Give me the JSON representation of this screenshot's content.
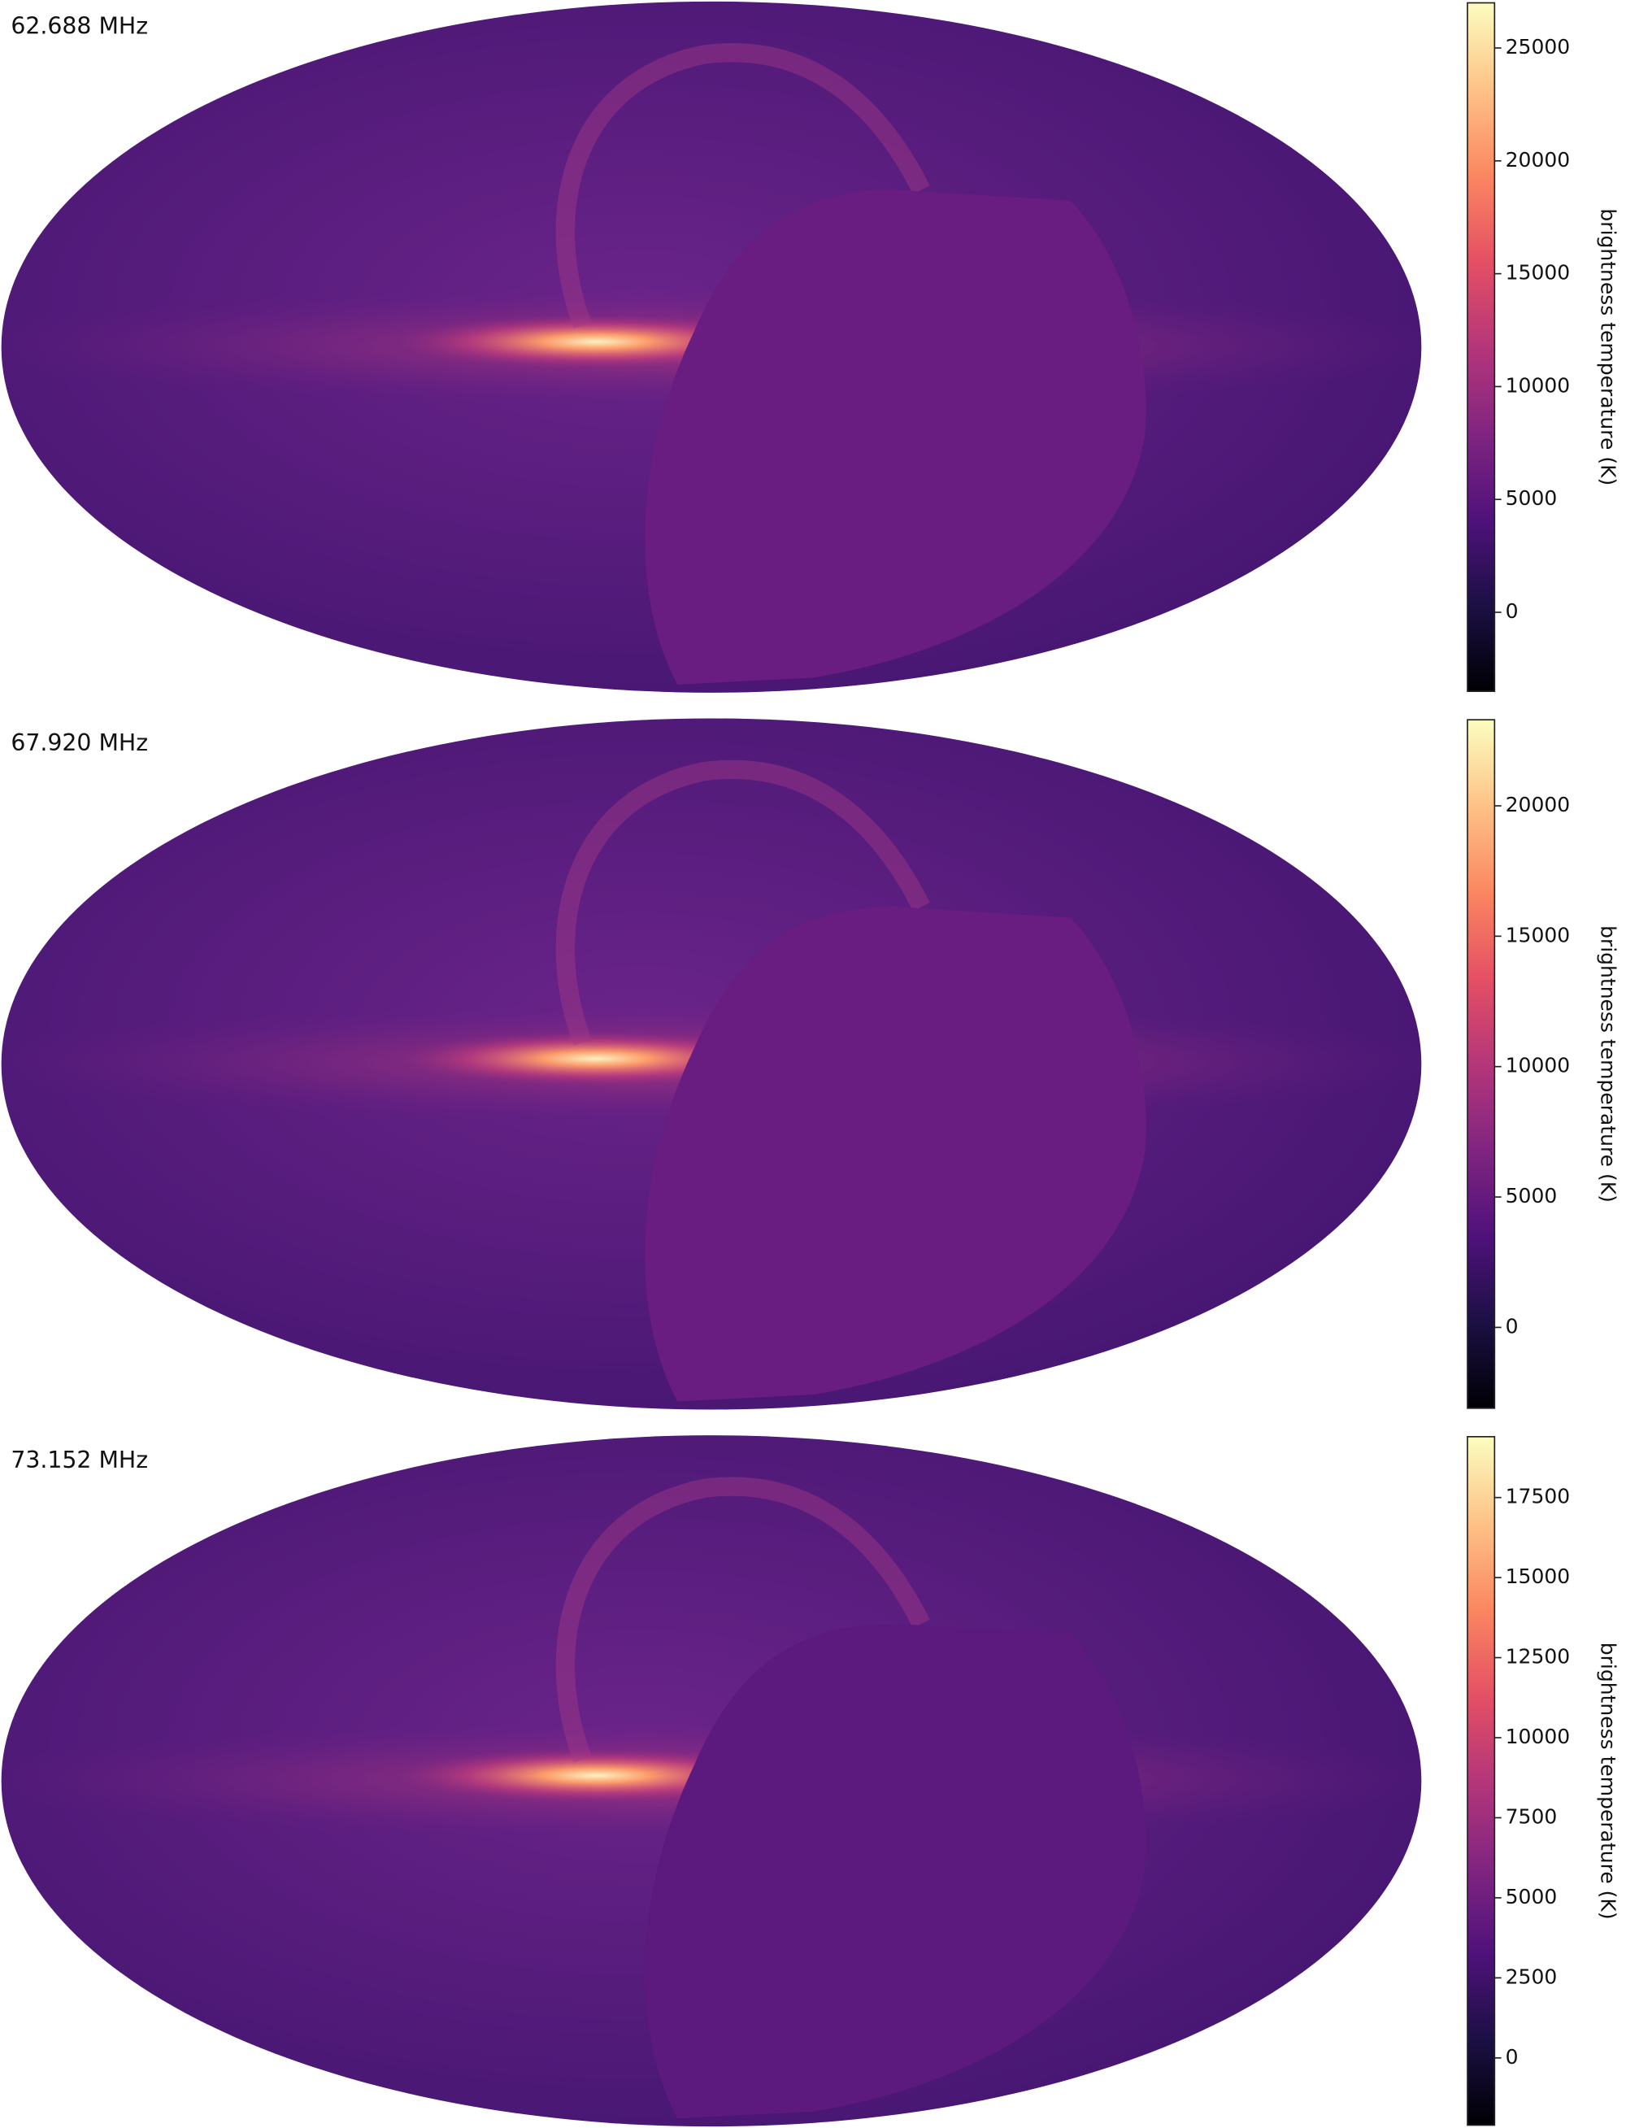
{
  "chart_data": [
    {
      "type": "skymap",
      "title": "62.688 MHz",
      "colorbar_label": "brightness temperature (K)",
      "colormap": "magma",
      "clim": [
        -3500,
        27000
      ],
      "cticks": [
        0,
        5000,
        10000,
        15000,
        20000,
        25000
      ]
    },
    {
      "type": "skymap",
      "title": "67.920 MHz",
      "colorbar_label": "brightness temperature (K)",
      "colormap": "magma",
      "clim": [
        -3100,
        23300
      ],
      "cticks": [
        0,
        5000,
        10000,
        15000,
        20000
      ]
    },
    {
      "type": "skymap",
      "title": "73.152 MHz",
      "colorbar_label": "brightness temperature (K)",
      "colormap": "magma",
      "clim": [
        -2100,
        19400
      ],
      "cticks": [
        0,
        2500,
        5000,
        7500,
        10000,
        12500,
        15000,
        17500
      ]
    }
  ]
}
